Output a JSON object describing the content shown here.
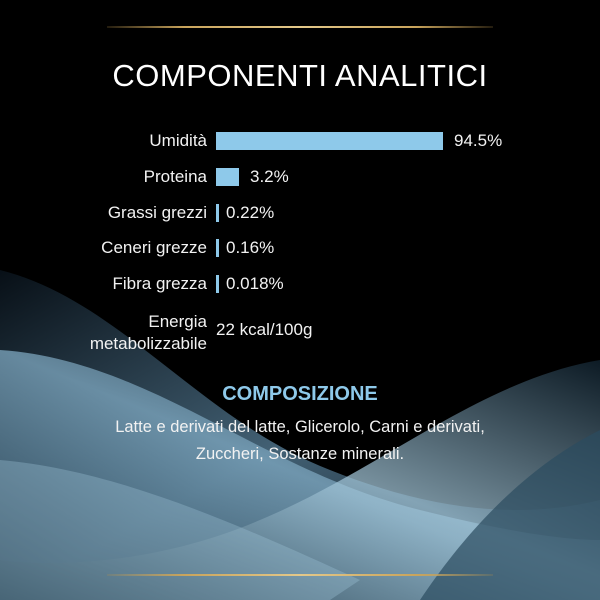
{
  "title": "COMPONENTI ANALITICI",
  "colors": {
    "bar": "#8ec9ea",
    "accent": "#8ec9ea",
    "gold": "#c9a45c",
    "background": "#000000"
  },
  "chart_data": {
    "type": "bar",
    "orientation": "horizontal",
    "categories": [
      "Umidità",
      "Proteina",
      "Grassi grezzi",
      "Ceneri grezze",
      "Fibra grezza"
    ],
    "values": [
      94.5,
      3.2,
      0.22,
      0.16,
      0.018
    ],
    "value_labels": [
      "94.5%",
      "3.2%",
      "0.22%",
      "0.16%",
      "0.018%"
    ],
    "unit": "%"
  },
  "energy": {
    "label_line1": "Energia",
    "label_line2": "metabolizzabile",
    "value": "22 kcal/100g"
  },
  "composition": {
    "title": "COMPOSIZIONE",
    "text": "Latte e derivati del latte, Glicerolo, Carni e derivati, Zuccheri, Sostanze minerali."
  }
}
